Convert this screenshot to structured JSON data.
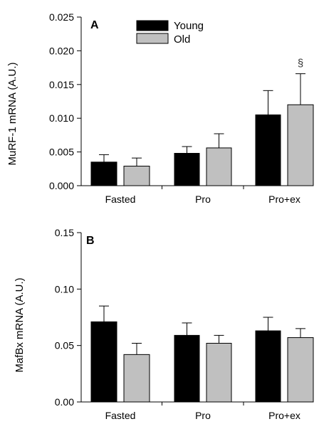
{
  "chart_data": [
    {
      "type": "bar",
      "panel_label": "A",
      "ylabel": "MuRF-1 mRNA (A.U.)",
      "categories": [
        "Fasted",
        "Pro",
        "Pro+ex"
      ],
      "ylim": [
        0,
        0.025
      ],
      "yticks": [
        "0.000",
        "0.005",
        "0.010",
        "0.015",
        "0.020",
        "0.025"
      ],
      "series": [
        {
          "name": "Young",
          "color": "#000000",
          "values": [
            0.0035,
            0.0048,
            0.0105
          ],
          "errors": [
            0.0011,
            0.001,
            0.0036
          ]
        },
        {
          "name": "Old",
          "color": "#c0c0c0",
          "values": [
            0.0029,
            0.0056,
            0.012
          ],
          "errors": [
            0.0012,
            0.0021,
            0.0046
          ]
        }
      ],
      "annotations": [
        {
          "text": "§",
          "category": "Pro+ex",
          "series": "Old"
        }
      ],
      "legend": "top-left"
    },
    {
      "type": "bar",
      "panel_label": "B",
      "ylabel": "MafBx mRNA (A.U.)",
      "categories": [
        "Fasted",
        "Pro",
        "Pro+ex"
      ],
      "ylim": [
        0,
        0.15
      ],
      "yticks": [
        "0.00",
        "0.05",
        "0.10",
        "0.15"
      ],
      "series": [
        {
          "name": "Young",
          "color": "#000000",
          "values": [
            0.071,
            0.059,
            0.063
          ],
          "errors": [
            0.014,
            0.011,
            0.012
          ]
        },
        {
          "name": "Old",
          "color": "#c0c0c0",
          "values": [
            0.042,
            0.052,
            0.057
          ],
          "errors": [
            0.01,
            0.007,
            0.008
          ]
        }
      ],
      "annotations": [],
      "legend": "none"
    }
  ]
}
